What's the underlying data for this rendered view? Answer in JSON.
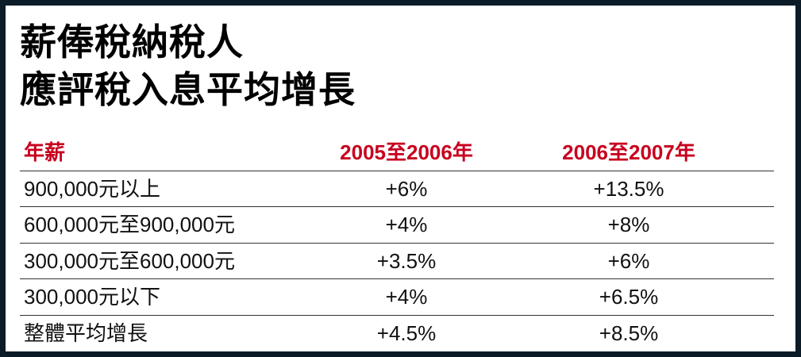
{
  "header": {
    "title_lines": [
      "薪俸稅納稅人",
      "應評稅入息平均增長"
    ]
  },
  "table": {
    "columns": [
      "年薪",
      "2005至2006年",
      "2006至2007年"
    ],
    "rows": [
      [
        "900,000元以上",
        "+6%",
        "+13.5%"
      ],
      [
        "600,000元至900,000元",
        "+4%",
        "+8%"
      ],
      [
        "300,000元至600,000元",
        "+3.5%",
        "+6%"
      ],
      [
        "300,000元以下",
        "+4%",
        "+6.5%"
      ],
      [
        "整體平均增長",
        "+4.5%",
        "+8.5%"
      ]
    ]
  }
}
